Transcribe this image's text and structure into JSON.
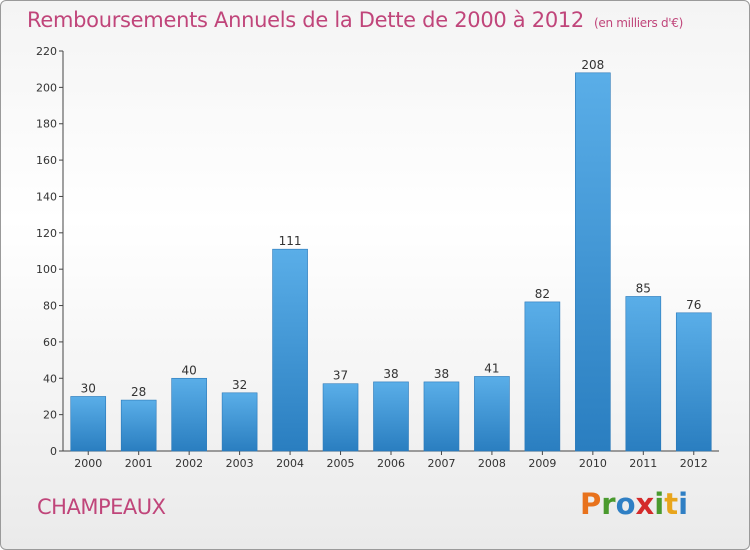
{
  "title": "Remboursements Annuels de la Dette de 2000 à 2012",
  "subtitle": "(en milliers d'€)",
  "city": "CHAMPEAUX",
  "logo": "Proxiti",
  "colors": {
    "title": "#c0457a",
    "bar_top": "#5aaee8",
    "bar_bottom": "#2a7ec0"
  },
  "chart_data": {
    "type": "bar",
    "categories": [
      "2000",
      "2001",
      "2002",
      "2003",
      "2004",
      "2005",
      "2006",
      "2007",
      "2008",
      "2009",
      "2010",
      "2011",
      "2012"
    ],
    "values": [
      30,
      28,
      40,
      32,
      111,
      37,
      38,
      38,
      41,
      82,
      208,
      85,
      76
    ],
    "title": "Remboursements Annuels de la Dette de 2000 à 2012",
    "subtitle": "(en milliers d'€)",
    "xlabel": "",
    "ylabel": "",
    "ylim": [
      0,
      220
    ],
    "yticks": [
      0,
      20,
      40,
      60,
      80,
      100,
      120,
      140,
      160,
      180,
      200,
      220
    ],
    "grid": false,
    "legend": "none"
  }
}
